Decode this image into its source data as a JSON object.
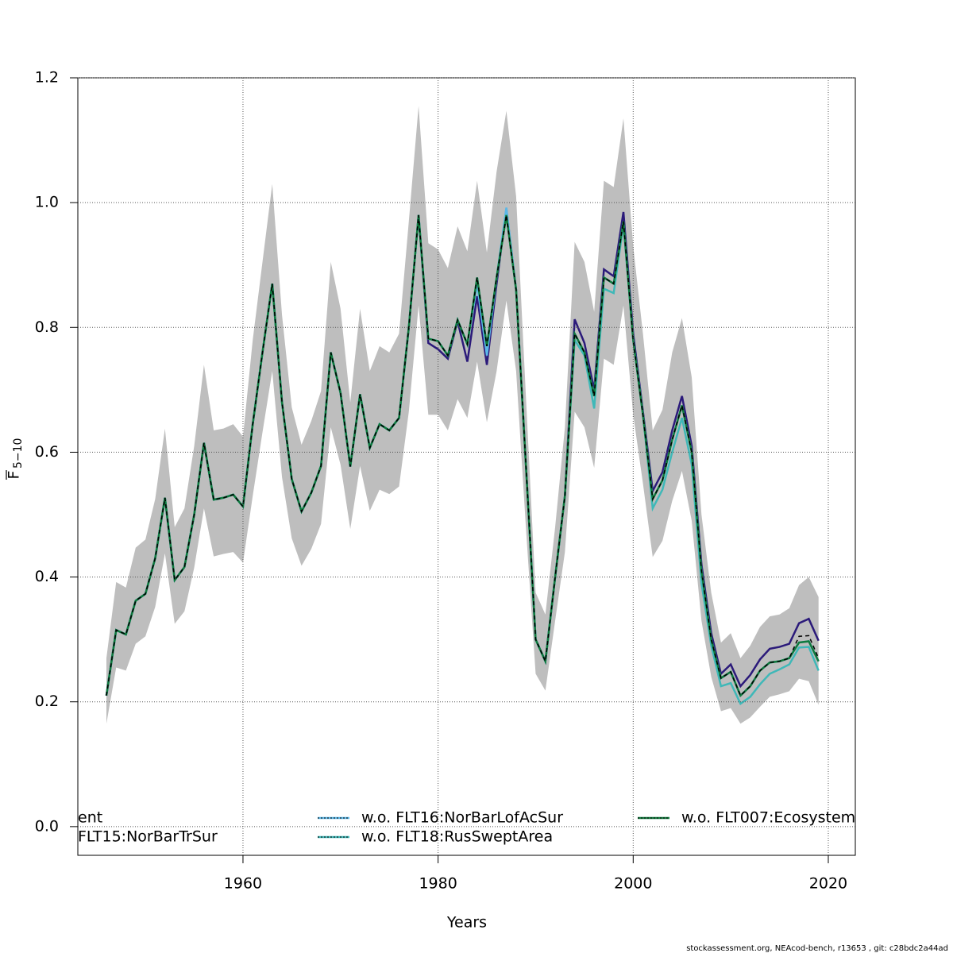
{
  "chart_data": {
    "type": "line",
    "xlabel": "Years",
    "ylabel": "F",
    "ylabel_sub": "5−10",
    "footnote": "stockassessment.org, NEAcod-bench, r13653 , git: c28bdc2a44ad",
    "x": [
      1946,
      1947,
      1948,
      1949,
      1950,
      1951,
      1952,
      1953,
      1954,
      1955,
      1956,
      1957,
      1958,
      1959,
      1960,
      1961,
      1962,
      1963,
      1964,
      1965,
      1966,
      1967,
      1968,
      1969,
      1970,
      1971,
      1972,
      1973,
      1974,
      1975,
      1976,
      1977,
      1978,
      1979,
      1980,
      1981,
      1982,
      1983,
      1984,
      1985,
      1986,
      1987,
      1988,
      1989,
      1990,
      1991,
      1992,
      1993,
      1994,
      1995,
      1996,
      1997,
      1998,
      1999,
      2000,
      2001,
      2002,
      2003,
      2004,
      2005,
      2006,
      2007,
      2008,
      2009,
      2010,
      2011,
      2012,
      2013,
      2014,
      2015,
      2016,
      2017,
      2018,
      2019
    ],
    "band": {
      "color": "#bebebe",
      "low": [
        0.165,
        0.255,
        0.25,
        0.293,
        0.305,
        0.352,
        0.438,
        0.325,
        0.345,
        0.415,
        0.51,
        0.433,
        0.437,
        0.44,
        0.423,
        0.53,
        0.632,
        0.73,
        0.56,
        0.462,
        0.418,
        0.445,
        0.485,
        0.64,
        0.58,
        0.477,
        0.578,
        0.506,
        0.54,
        0.533,
        0.545,
        0.665,
        0.835,
        0.66,
        0.66,
        0.635,
        0.685,
        0.655,
        0.745,
        0.648,
        0.73,
        0.843,
        0.73,
        0.48,
        0.245,
        0.218,
        0.33,
        0.44,
        0.665,
        0.64,
        0.575,
        0.75,
        0.74,
        0.835,
        0.66,
        0.55,
        0.432,
        0.458,
        0.522,
        0.57,
        0.49,
        0.33,
        0.24,
        0.185,
        0.19,
        0.165,
        0.175,
        0.192,
        0.208,
        0.212,
        0.217,
        0.237,
        0.233,
        0.195
      ],
      "high": [
        0.27,
        0.392,
        0.383,
        0.447,
        0.46,
        0.525,
        0.638,
        0.48,
        0.51,
        0.61,
        0.74,
        0.635,
        0.638,
        0.645,
        0.625,
        0.78,
        0.905,
        1.03,
        0.82,
        0.672,
        0.612,
        0.65,
        0.698,
        0.905,
        0.83,
        0.68,
        0.83,
        0.73,
        0.77,
        0.76,
        0.79,
        0.97,
        1.155,
        0.935,
        0.925,
        0.895,
        0.962,
        0.922,
        1.035,
        0.92,
        1.05,
        1.147,
        1.01,
        0.69,
        0.375,
        0.34,
        0.48,
        0.64,
        0.937,
        0.905,
        0.825,
        1.035,
        1.025,
        1.135,
        0.93,
        0.79,
        0.635,
        0.668,
        0.76,
        0.815,
        0.72,
        0.5,
        0.375,
        0.295,
        0.31,
        0.27,
        0.29,
        0.32,
        0.337,
        0.34,
        0.35,
        0.387,
        0.4,
        0.368
      ]
    },
    "series": [
      {
        "name": "ent",
        "color": "#0f7a3c",
        "dash": "none",
        "values": [
          0.21,
          0.315,
          0.308,
          0.362,
          0.373,
          0.43,
          0.527,
          0.395,
          0.416,
          0.5,
          0.615,
          0.524,
          0.527,
          0.532,
          0.513,
          0.645,
          0.76,
          0.87,
          0.68,
          0.557,
          0.505,
          0.535,
          0.578,
          0.76,
          0.695,
          0.577,
          0.693,
          0.607,
          0.645,
          0.635,
          0.655,
          0.8,
          0.98,
          0.782,
          0.778,
          0.755,
          0.812,
          0.773,
          0.88,
          0.77,
          0.88,
          0.98,
          0.86,
          0.58,
          0.3,
          0.265,
          0.4,
          0.53,
          0.79,
          0.76,
          0.69,
          0.88,
          0.87,
          0.97,
          0.78,
          0.66,
          0.525,
          0.555,
          0.62,
          0.675,
          0.6,
          0.41,
          0.3,
          0.238,
          0.248,
          0.21,
          0.225,
          0.25,
          0.263,
          0.265,
          0.27,
          0.295,
          0.297,
          0.265
        ]
      },
      {
        "name": "FLT15:NorBarTrSur",
        "color": "#2b1a7a",
        "dash": "none",
        "values": [
          0.21,
          0.315,
          0.308,
          0.362,
          0.373,
          0.43,
          0.527,
          0.395,
          0.416,
          0.5,
          0.615,
          0.524,
          0.527,
          0.532,
          0.513,
          0.645,
          0.76,
          0.87,
          0.68,
          0.557,
          0.505,
          0.535,
          0.578,
          0.76,
          0.695,
          0.577,
          0.693,
          0.607,
          0.645,
          0.635,
          0.655,
          0.8,
          0.98,
          0.775,
          0.765,
          0.75,
          0.81,
          0.745,
          0.85,
          0.74,
          0.87,
          0.99,
          0.86,
          0.58,
          0.3,
          0.265,
          0.4,
          0.53,
          0.813,
          0.775,
          0.7,
          0.893,
          0.882,
          0.985,
          0.79,
          0.665,
          0.538,
          0.568,
          0.635,
          0.69,
          0.61,
          0.42,
          0.31,
          0.245,
          0.26,
          0.225,
          0.243,
          0.268,
          0.285,
          0.288,
          0.293,
          0.326,
          0.333,
          0.298
        ]
      },
      {
        "name": "w.o. FLT16:NorBarLofAcSur",
        "color": "#5bb8e8",
        "dash": "none",
        "values": [
          0.21,
          0.315,
          0.308,
          0.362,
          0.373,
          0.43,
          0.527,
          0.395,
          0.416,
          0.5,
          0.615,
          0.524,
          0.527,
          0.532,
          0.513,
          0.645,
          0.76,
          0.87,
          0.68,
          0.557,
          0.505,
          0.535,
          0.578,
          0.76,
          0.695,
          0.577,
          0.693,
          0.607,
          0.645,
          0.635,
          0.655,
          0.8,
          0.98,
          0.782,
          0.778,
          0.755,
          0.812,
          0.773,
          0.87,
          0.755,
          0.88,
          0.992,
          0.86,
          0.58,
          0.3,
          0.265,
          0.4,
          0.53,
          0.79,
          0.76,
          0.69,
          0.88,
          0.87,
          0.97,
          0.78,
          0.66,
          0.525,
          0.555,
          0.62,
          0.675,
          0.6,
          0.41,
          0.3,
          0.238,
          0.248,
          0.21,
          0.225,
          0.25,
          0.263,
          0.265,
          0.27,
          0.295,
          0.297,
          0.265
        ]
      },
      {
        "name": "w.o. FLT18:RusSweptArea",
        "color": "#3fb8b8",
        "dash": "none",
        "values": [
          0.21,
          0.315,
          0.308,
          0.362,
          0.373,
          0.43,
          0.527,
          0.395,
          0.416,
          0.5,
          0.615,
          0.524,
          0.527,
          0.532,
          0.513,
          0.645,
          0.76,
          0.87,
          0.68,
          0.557,
          0.505,
          0.535,
          0.578,
          0.76,
          0.695,
          0.577,
          0.693,
          0.607,
          0.645,
          0.635,
          0.655,
          0.8,
          0.98,
          0.782,
          0.778,
          0.755,
          0.812,
          0.773,
          0.88,
          0.77,
          0.88,
          0.98,
          0.86,
          0.58,
          0.3,
          0.265,
          0.4,
          0.53,
          0.78,
          0.755,
          0.67,
          0.862,
          0.855,
          0.965,
          0.78,
          0.66,
          0.51,
          0.54,
          0.6,
          0.655,
          0.58,
          0.39,
          0.29,
          0.225,
          0.23,
          0.197,
          0.208,
          0.228,
          0.245,
          0.252,
          0.26,
          0.287,
          0.288,
          0.25
        ]
      },
      {
        "name": "w.o. FLT007:Ecosystem",
        "color": "#000000",
        "dash": "5 4",
        "values": [
          0.21,
          0.315,
          0.308,
          0.362,
          0.373,
          0.43,
          0.527,
          0.395,
          0.416,
          0.5,
          0.615,
          0.524,
          0.527,
          0.532,
          0.513,
          0.645,
          0.76,
          0.87,
          0.68,
          0.557,
          0.505,
          0.535,
          0.578,
          0.76,
          0.695,
          0.577,
          0.693,
          0.607,
          0.645,
          0.635,
          0.655,
          0.8,
          0.98,
          0.782,
          0.778,
          0.755,
          0.812,
          0.773,
          0.88,
          0.77,
          0.88,
          0.98,
          0.86,
          0.58,
          0.3,
          0.265,
          0.4,
          0.53,
          0.79,
          0.76,
          0.69,
          0.88,
          0.87,
          0.97,
          0.78,
          0.66,
          0.525,
          0.555,
          0.62,
          0.675,
          0.6,
          0.41,
          0.3,
          0.238,
          0.248,
          0.21,
          0.225,
          0.25,
          0.263,
          0.265,
          0.27,
          0.305,
          0.306,
          0.27
        ]
      }
    ],
    "xlim": [
      1943.07,
      2022.77
    ],
    "xticks": [
      1960,
      1980,
      2000,
      2020
    ],
    "ylim": [
      -0.046,
      1.2
    ],
    "yticks": [
      {
        "value": 0,
        "label": "0.0"
      },
      0.2,
      0.4,
      0.6,
      0.8,
      {
        "value": 1,
        "label": "1.0"
      },
      1.2
    ],
    "grid": true,
    "legend": "bottom"
  }
}
